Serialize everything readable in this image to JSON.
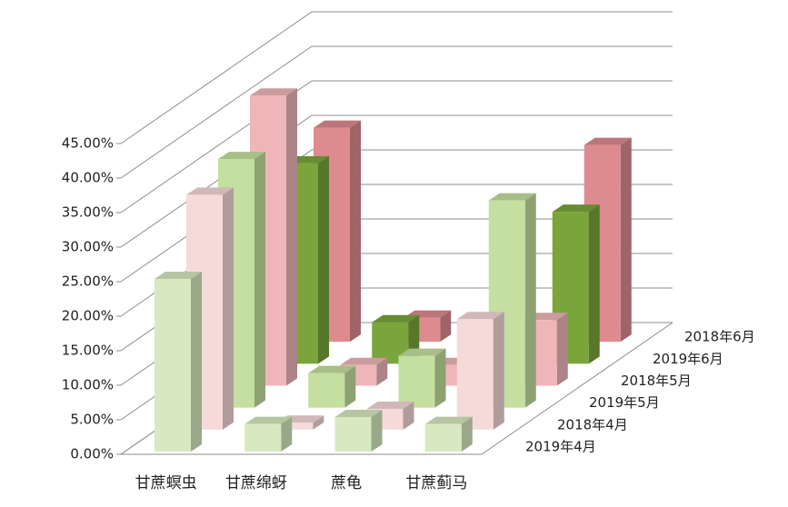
{
  "chart_data": {
    "type": "bar3d",
    "categories": [
      "甘蔗螟虫",
      "甘蔗绵蚜",
      "蔗龟",
      "甘蔗蓟马"
    ],
    "series": [
      {
        "name": "2019年4月",
        "color": "#d6e9c0",
        "values": [
          25,
          4,
          5,
          4
        ]
      },
      {
        "name": "2018年4月",
        "color": "#f6d9d9",
        "values": [
          34,
          1,
          3,
          16
        ]
      },
      {
        "name": "2019年5月",
        "color": "#c4df9f",
        "values": [
          36,
          5,
          7.5,
          30
        ]
      },
      {
        "name": "2018年5月",
        "color": "#efb6ba",
        "values": [
          42,
          3,
          3,
          9.5
        ]
      },
      {
        "name": "2019年6月",
        "color": "#79a53b",
        "values": [
          29,
          6,
          0,
          22
        ]
      },
      {
        "name": "2018年6月",
        "color": "#dd8b8f",
        "values": [
          31,
          3.5,
          0,
          28.5
        ]
      }
    ],
    "ylim": [
      0,
      45
    ],
    "yticks": [
      {
        "value": 0,
        "label": "0.00%"
      },
      {
        "value": 5,
        "label": "5.00%"
      },
      {
        "value": 10,
        "label": "10.00%"
      },
      {
        "value": 15,
        "label": "15.00%"
      },
      {
        "value": 20,
        "label": "20.00%"
      },
      {
        "value": 25,
        "label": "25.00%"
      },
      {
        "value": 30,
        "label": "30.00%"
      },
      {
        "value": 35,
        "label": "35.00%"
      },
      {
        "value": 40,
        "label": "40.00%"
      },
      {
        "value": 45,
        "label": "45.00%"
      }
    ],
    "grid": true
  }
}
